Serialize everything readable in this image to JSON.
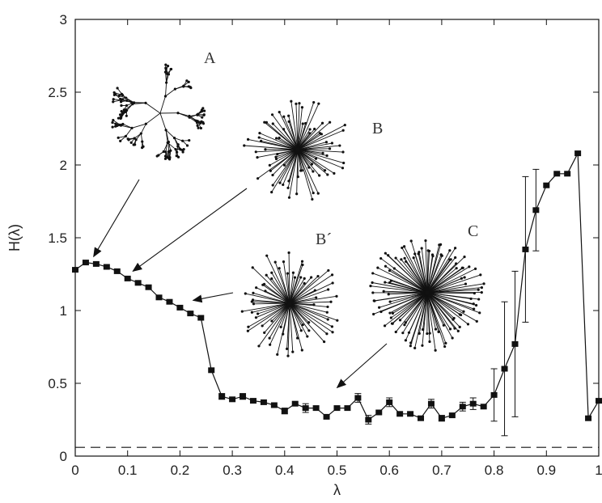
{
  "chart_data": {
    "type": "line",
    "xlabel": "λ",
    "ylabel": "H(λ)",
    "xlim": [
      0,
      1
    ],
    "ylim": [
      0,
      3
    ],
    "x_ticks": [
      "0",
      "0.1",
      "0.2",
      "0.3",
      "0.4",
      "0.5",
      "0.6",
      "0.7",
      "0.8",
      "0.9",
      "1"
    ],
    "y_ticks": [
      "0",
      "0.5",
      "1",
      "1.5",
      "2",
      "2.5",
      "3"
    ],
    "grid": false,
    "series": [
      {
        "points": [
          {
            "x": 0.0,
            "y": 1.28
          },
          {
            "x": 0.02,
            "y": 1.33
          },
          {
            "x": 0.04,
            "y": 1.32
          },
          {
            "x": 0.06,
            "y": 1.3
          },
          {
            "x": 0.08,
            "y": 1.27
          },
          {
            "x": 0.1,
            "y": 1.22
          },
          {
            "x": 0.12,
            "y": 1.19
          },
          {
            "x": 0.14,
            "y": 1.16
          },
          {
            "x": 0.16,
            "y": 1.09
          },
          {
            "x": 0.18,
            "y": 1.06
          },
          {
            "x": 0.2,
            "y": 1.02
          },
          {
            "x": 0.22,
            "y": 0.98
          },
          {
            "x": 0.24,
            "y": 0.95
          },
          {
            "x": 0.26,
            "y": 0.59
          },
          {
            "x": 0.28,
            "y": 0.41,
            "err": 0.02
          },
          {
            "x": 0.3,
            "y": 0.39
          },
          {
            "x": 0.32,
            "y": 0.41,
            "err": 0.02
          },
          {
            "x": 0.34,
            "y": 0.38
          },
          {
            "x": 0.36,
            "y": 0.37
          },
          {
            "x": 0.38,
            "y": 0.35
          },
          {
            "x": 0.4,
            "y": 0.31,
            "err": 0.02
          },
          {
            "x": 0.42,
            "y": 0.36
          },
          {
            "x": 0.44,
            "y": 0.33,
            "err": 0.03
          },
          {
            "x": 0.46,
            "y": 0.33
          },
          {
            "x": 0.48,
            "y": 0.27
          },
          {
            "x": 0.5,
            "y": 0.33
          },
          {
            "x": 0.52,
            "y": 0.33
          },
          {
            "x": 0.54,
            "y": 0.4,
            "err": 0.03
          },
          {
            "x": 0.56,
            "y": 0.25,
            "err": 0.03
          },
          {
            "x": 0.58,
            "y": 0.3
          },
          {
            "x": 0.6,
            "y": 0.37,
            "err": 0.03
          },
          {
            "x": 0.62,
            "y": 0.29
          },
          {
            "x": 0.64,
            "y": 0.29
          },
          {
            "x": 0.66,
            "y": 0.26
          },
          {
            "x": 0.68,
            "y": 0.36,
            "err": 0.03
          },
          {
            "x": 0.7,
            "y": 0.26,
            "err": 0.02
          },
          {
            "x": 0.72,
            "y": 0.28
          },
          {
            "x": 0.74,
            "y": 0.34,
            "err": 0.03
          },
          {
            "x": 0.76,
            "y": 0.36,
            "err": 0.04
          },
          {
            "x": 0.78,
            "y": 0.34
          },
          {
            "x": 0.8,
            "y": 0.42,
            "err": 0.18
          },
          {
            "x": 0.82,
            "y": 0.6,
            "err": 0.46
          },
          {
            "x": 0.84,
            "y": 0.77,
            "err": 0.5
          },
          {
            "x": 0.86,
            "y": 1.42,
            "err": 0.5
          },
          {
            "x": 0.88,
            "y": 1.69,
            "err": 0.28
          },
          {
            "x": 0.9,
            "y": 1.86
          },
          {
            "x": 0.92,
            "y": 1.94
          },
          {
            "x": 0.94,
            "y": 1.94
          },
          {
            "x": 0.96,
            "y": 2.08
          },
          {
            "x": 0.98,
            "y": 0.26
          },
          {
            "x": 1.0,
            "y": 0.38
          }
        ]
      }
    ],
    "reference_line": {
      "y": 0.06,
      "style": "dashed"
    },
    "annotations": [
      {
        "label": "A",
        "target": {
          "x": 0.035,
          "y": 1.37
        }
      },
      {
        "label": "B",
        "target": {
          "x": 0.11,
          "y": 1.27
        }
      },
      {
        "label": "B´",
        "target": {
          "x": 0.225,
          "y": 1.07
        }
      },
      {
        "label": "C",
        "target": {
          "x": 0.5,
          "y": 0.47
        }
      }
    ]
  }
}
